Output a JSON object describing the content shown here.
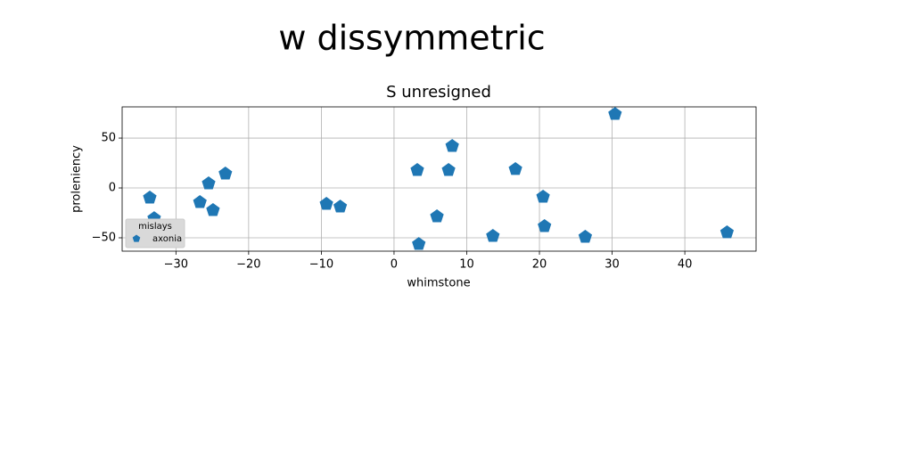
{
  "chart_data": {
    "type": "scatter",
    "suptitle": "w dissymmetric",
    "title": "S unresigned",
    "xlabel": "whimstone",
    "ylabel": "proleniency",
    "legend_title": "mislays",
    "legend_loc": "lower left",
    "grid": true,
    "marker": "pentagon",
    "xlim": [
      -37.4,
      49.8
    ],
    "ylim": [
      -63.4,
      81.3
    ],
    "xticks": [
      {
        "value": -30,
        "label": "−30"
      },
      {
        "value": -20,
        "label": "−20"
      },
      {
        "value": -10,
        "label": "−10"
      },
      0,
      10,
      20,
      30,
      40
    ],
    "yticks": [
      {
        "value": -50,
        "label": "−50"
      },
      0,
      50
    ],
    "series": [
      {
        "name": "axonia",
        "color": "#1f77b4",
        "x": [
          -33.6,
          -33.0,
          -26.7,
          -25.5,
          -24.9,
          -23.2,
          -9.3,
          -7.4,
          3.2,
          3.4,
          5.9,
          7.5,
          8.0,
          13.6,
          16.7,
          20.5,
          20.7,
          26.3,
          30.4,
          45.8
        ],
        "values": [
          -9.8,
          -30.4,
          -14.3,
          4.5,
          -22.3,
          14.3,
          -16.1,
          -18.8,
          17.9,
          -56.3,
          -28.6,
          17.9,
          42.0,
          -48.2,
          18.8,
          -8.9,
          -38.4,
          -49.1,
          74.1,
          -44.6
        ]
      }
    ]
  }
}
